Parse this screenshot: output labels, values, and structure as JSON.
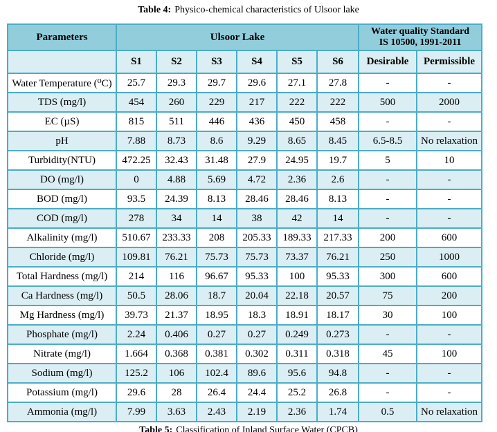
{
  "title": {
    "label": "Table 4:",
    "text": "Physico-chemical characteristics of Ulsoor lake"
  },
  "footer_caption": {
    "label": "Table 5:",
    "text": "Classification of Inland Surface Water (CPCB)"
  },
  "colors": {
    "border": "#4bacc6",
    "header_bg": "#92cddc",
    "band_bg": "#daeef3"
  },
  "table": {
    "header": {
      "parameters": "Parameters",
      "lake_group": "Ulsoor Lake",
      "standard_group_line1": "Water quality Standard",
      "standard_group_line2": "IS 10500, 1991-2011",
      "sites": [
        "S1",
        "S2",
        "S3",
        "S4",
        "S5",
        "S6"
      ],
      "standards": [
        "Desirable",
        "Permissible"
      ]
    },
    "rows": [
      {
        "param": "Water Temperature (⁰C)",
        "values": [
          "25.7",
          "29.3",
          "29.7",
          "29.6",
          "27.1",
          "27.8",
          "-",
          "-"
        ]
      },
      {
        "param": "TDS (mg/l)",
        "values": [
          "454",
          "260",
          "229",
          "217",
          "222",
          "222",
          "500",
          "2000"
        ]
      },
      {
        "param": "EC (µS)",
        "values": [
          "815",
          "511",
          "446",
          "436",
          "450",
          "458",
          "-",
          "-"
        ]
      },
      {
        "param": "pH",
        "values": [
          "7.88",
          "8.73",
          "8.6",
          "9.29",
          "8.65",
          "8.45",
          "6.5-8.5",
          "No relaxation"
        ]
      },
      {
        "param": "Turbidity(NTU)",
        "values": [
          "472.25",
          "32.43",
          "31.48",
          "27.9",
          "24.95",
          "19.7",
          "5",
          "10"
        ]
      },
      {
        "param": "DO (mg/l)",
        "values": [
          "0",
          "4.88",
          "5.69",
          "4.72",
          "2.36",
          "2.6",
          "-",
          "-"
        ]
      },
      {
        "param": "BOD (mg/l)",
        "values": [
          "93.5",
          "24.39",
          "8.13",
          "28.46",
          "28.46",
          "8.13",
          "-",
          "-"
        ]
      },
      {
        "param": "COD (mg/l)",
        "values": [
          "278",
          "34",
          "14",
          "38",
          "42",
          "14",
          "-",
          "-"
        ]
      },
      {
        "param": "Alkalinity (mg/l)",
        "values": [
          "510.67",
          "233.33",
          "208",
          "205.33",
          "189.33",
          "217.33",
          "200",
          "600"
        ]
      },
      {
        "param": "Chloride (mg/l)",
        "values": [
          "109.81",
          "76.21",
          "75.73",
          "75.73",
          "73.37",
          "76.21",
          "250",
          "1000"
        ]
      },
      {
        "param": "Total Hardness (mg/l)",
        "values": [
          "214",
          "116",
          "96.67",
          "95.33",
          "100",
          "95.33",
          "300",
          "600"
        ]
      },
      {
        "param": "Ca Hardness (mg/l)",
        "values": [
          "50.5",
          "28.06",
          "18.7",
          "20.04",
          "22.18",
          "20.57",
          "75",
          "200"
        ]
      },
      {
        "param": "Mg Hardness (mg/l)",
        "values": [
          "39.73",
          "21.37",
          "18.95",
          "18.3",
          "18.91",
          "18.17",
          "30",
          "100"
        ]
      },
      {
        "param": "Phosphate (mg/l)",
        "values": [
          "2.24",
          "0.406",
          "0.27",
          "0.27",
          "0.249",
          "0.273",
          "-",
          "-"
        ]
      },
      {
        "param": "Nitrate (mg/l)",
        "values": [
          "1.664",
          "0.368",
          "0.381",
          "0.302",
          "0.311",
          "0.318",
          "45",
          "100"
        ]
      },
      {
        "param": "Sodium (mg/l)",
        "values": [
          "125.2",
          "106",
          "102.4",
          "89.6",
          "95.6",
          "94.8",
          "-",
          "-"
        ]
      },
      {
        "param": "Potassium (mg/l)",
        "values": [
          "29.6",
          "28",
          "26.4",
          "24.4",
          "25.2",
          "26.8",
          "-",
          "-"
        ]
      },
      {
        "param": "Ammonia (mg/l)",
        "values": [
          "7.99",
          "3.63",
          "2.43",
          "2.19",
          "2.36",
          "1.74",
          "0.5",
          "No relaxation"
        ]
      }
    ]
  }
}
